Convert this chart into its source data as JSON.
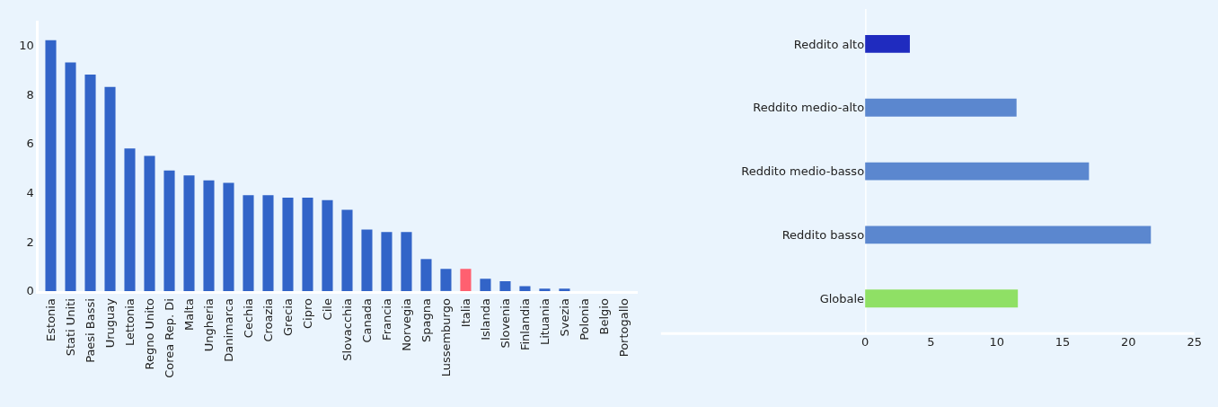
{
  "chart_data": [
    {
      "type": "bar",
      "categories": [
        "Estonia",
        "Stati Uniti",
        "Paesi Bassi",
        "Uruguay",
        "Lettonia",
        "Regno Unito",
        "Corea Rep. Di",
        "Malta",
        "Ungheria",
        "Danimarca",
        "Cechia",
        "Croazia",
        "Grecia",
        "Cipro",
        "Cile",
        "Slovacchia",
        "Canada",
        "Francia",
        "Norvegia",
        "Spagna",
        "Lussemburgo",
        "Italia",
        "Islanda",
        "Slovenia",
        "Finlandia",
        "Lituania",
        "Svezia",
        "Polonia",
        "Belgio",
        "Portogallo"
      ],
      "values": [
        10.2,
        9.3,
        8.8,
        8.3,
        5.8,
        5.5,
        4.9,
        4.7,
        4.5,
        4.4,
        3.9,
        3.9,
        3.8,
        3.8,
        3.7,
        3.3,
        2.5,
        2.4,
        2.4,
        1.3,
        0.9,
        0.9,
        0.5,
        0.4,
        0.2,
        0.1,
        0.1,
        0,
        0,
        0
      ],
      "colors": [
        "#3264c8",
        "#3264c8",
        "#3264c8",
        "#3264c8",
        "#3264c8",
        "#3264c8",
        "#3264c8",
        "#3264c8",
        "#3264c8",
        "#3264c8",
        "#3264c8",
        "#3264c8",
        "#3264c8",
        "#3264c8",
        "#3264c8",
        "#3264c8",
        "#3264c8",
        "#3264c8",
        "#3264c8",
        "#3264c8",
        "#3264c8",
        "#ff6070",
        "#3264c8",
        "#3264c8",
        "#3264c8",
        "#3264c8",
        "#3264c8",
        "#3264c8",
        "#3264c8",
        "#3264c8"
      ],
      "ylim": [
        0,
        11
      ],
      "yticks": [
        0,
        2,
        4,
        6,
        8,
        10
      ]
    },
    {
      "type": "bar",
      "orientation": "horizontal",
      "categories": [
        "Reddito alto",
        "Reddito medio-alto",
        "Reddito medio-basso",
        "Reddito basso",
        "Globale"
      ],
      "values": [
        3.4,
        11.5,
        17.0,
        21.7,
        11.6
      ],
      "colors": [
        "#1f2bbf",
        "#5b87cf",
        "#5b87cf",
        "#5b87cf",
        "#8fe065"
      ],
      "xlim": [
        0,
        25
      ],
      "xticks": [
        0,
        5,
        10,
        15,
        20,
        25
      ]
    }
  ]
}
